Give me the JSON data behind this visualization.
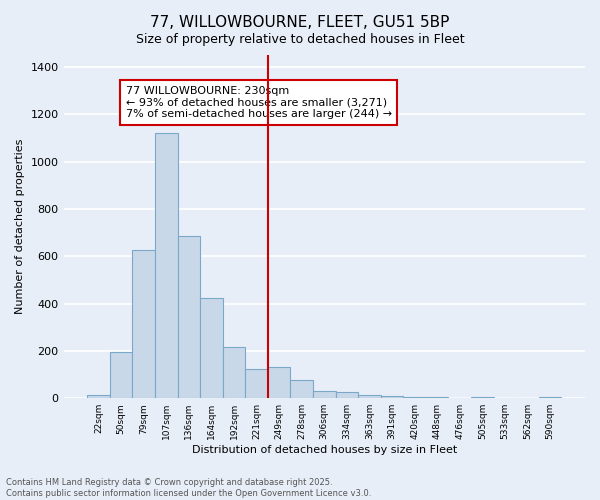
{
  "title": "77, WILLOWBOURNE, FLEET, GU51 5BP",
  "subtitle": "Size of property relative to detached houses in Fleet",
  "xlabel": "Distribution of detached houses by size in Fleet",
  "ylabel": "Number of detached properties",
  "categories": [
    "22sqm",
    "50sqm",
    "79sqm",
    "107sqm",
    "136sqm",
    "164sqm",
    "192sqm",
    "221sqm",
    "249sqm",
    "278sqm",
    "306sqm",
    "334sqm",
    "363sqm",
    "391sqm",
    "420sqm",
    "448sqm",
    "476sqm",
    "505sqm",
    "533sqm",
    "562sqm",
    "590sqm"
  ],
  "values": [
    15,
    195,
    625,
    1120,
    685,
    425,
    215,
    125,
    130,
    75,
    30,
    25,
    15,
    10,
    5,
    5,
    0,
    5,
    0,
    0,
    5
  ],
  "bar_color": "#c8d8e8",
  "bar_edge_color": "#7aa8c8",
  "vline_x": 7.5,
  "vline_color": "#cc0000",
  "annotation_text": "77 WILLOWBOURNE: 230sqm\n← 93% of detached houses are smaller (3,271)\n7% of semi-detached houses are larger (244) →",
  "annotation_box_color": "#ffffff",
  "annotation_box_edge": "#cc0000",
  "bg_color": "#e8eef8",
  "grid_color": "#ffffff",
  "footer_text": "Contains HM Land Registry data © Crown copyright and database right 2025.\nContains public sector information licensed under the Open Government Licence v3.0.",
  "ylim": [
    0,
    1450
  ],
  "yticks": [
    0,
    200,
    400,
    600,
    800,
    1000,
    1200,
    1400
  ],
  "title_fontsize": 11,
  "subtitle_fontsize": 9,
  "annotation_fontsize": 8,
  "footer_fontsize": 6
}
